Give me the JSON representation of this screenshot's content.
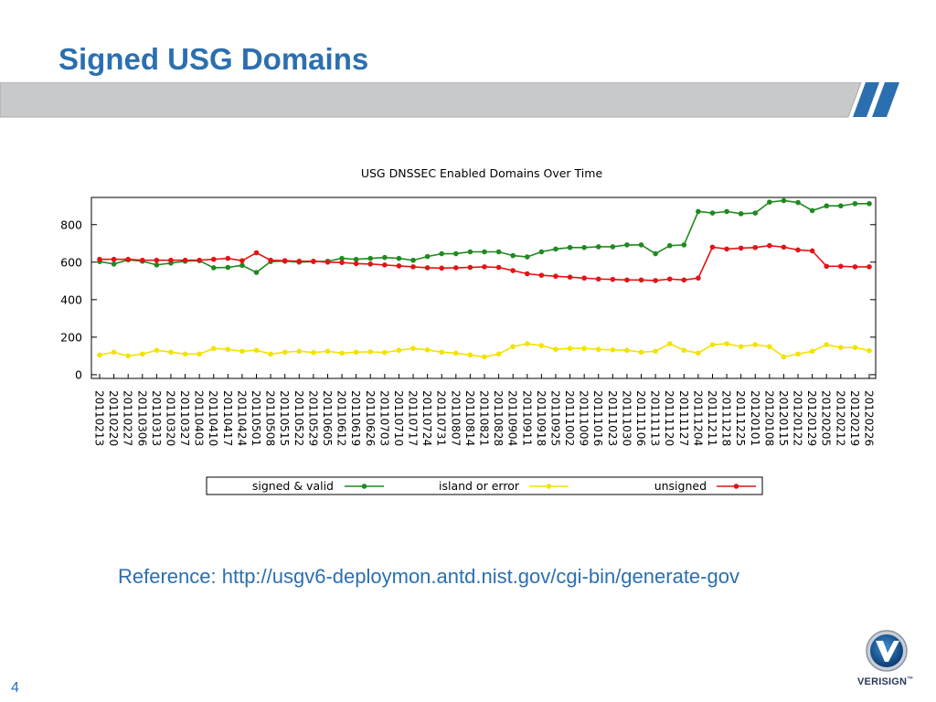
{
  "slide": {
    "title": "Signed USG Domains",
    "reference": "Reference:  http://usgv6-deploymon.antd.nist.gov/cgi-bin/generate-gov",
    "page_number": "4",
    "logo_text": "VERISIGN",
    "logo_tm": "™"
  },
  "colors": {
    "title": "#2c6fb0",
    "banner": "#c8c9cb",
    "signed": "#1f8a1f",
    "island": "#f2e300",
    "unsigned": "#e31414"
  },
  "chart_data": {
    "type": "line",
    "title": "USG DNSSEC Enabled Domains Over Time",
    "xlabel": "",
    "ylabel": "",
    "ylim": [
      -20,
      945
    ],
    "yticks": [
      0,
      200,
      400,
      600,
      800
    ],
    "grid": false,
    "legend_position": "bottom",
    "x": [
      "20110213",
      "20110220",
      "20110227",
      "20110306",
      "20110313",
      "20110320",
      "20110327",
      "20110403",
      "20110410",
      "20110417",
      "20110424",
      "20110501",
      "20110508",
      "20110515",
      "20110522",
      "20110529",
      "20110605",
      "20110612",
      "20110619",
      "20110626",
      "20110703",
      "20110710",
      "20110717",
      "20110724",
      "20110731",
      "20110807",
      "20110814",
      "20110821",
      "20110828",
      "20110904",
      "20110911",
      "20110918",
      "20110925",
      "20111002",
      "20111009",
      "20111016",
      "20111023",
      "20111030",
      "20111106",
      "20111113",
      "20111120",
      "20111127",
      "20111204",
      "20111211",
      "20111218",
      "20111225",
      "20120101",
      "20120108",
      "20120115",
      "20120122",
      "20120129",
      "20120205",
      "20120212",
      "20120219",
      "20120226"
    ],
    "series": [
      {
        "name": "signed & valid",
        "color": "#1f8a1f",
        "values": [
          603,
          590,
          612,
          605,
          585,
          595,
          605,
          608,
          570,
          572,
          583,
          545,
          603,
          605,
          600,
          603,
          605,
          620,
          615,
          620,
          625,
          620,
          610,
          630,
          645,
          645,
          655,
          655,
          655,
          635,
          628,
          655,
          670,
          678,
          678,
          682,
          682,
          692,
          692,
          645,
          688,
          692,
          870,
          862,
          870,
          858,
          862,
          920,
          928,
          918,
          875,
          900,
          900,
          912,
          912
        ]
      },
      {
        "name": "island or error",
        "color": "#f2e300",
        "values": [
          105,
          120,
          100,
          110,
          130,
          120,
          110,
          110,
          140,
          135,
          125,
          130,
          110,
          120,
          125,
          118,
          125,
          115,
          120,
          122,
          118,
          130,
          140,
          132,
          120,
          115,
          105,
          95,
          110,
          150,
          165,
          155,
          135,
          140,
          140,
          135,
          132,
          130,
          120,
          125,
          165,
          130,
          115,
          160,
          165,
          150,
          160,
          150,
          95,
          110,
          125,
          160,
          145,
          145,
          128
        ]
      },
      {
        "name": "unsigned",
        "color": "#e31414",
        "values": [
          615,
          615,
          615,
          610,
          610,
          610,
          610,
          610,
          615,
          620,
          608,
          650,
          610,
          608,
          605,
          605,
          600,
          598,
          592,
          590,
          585,
          580,
          575,
          570,
          568,
          570,
          572,
          575,
          572,
          555,
          538,
          530,
          525,
          520,
          515,
          510,
          508,
          505,
          505,
          502,
          510,
          505,
          515,
          680,
          670,
          675,
          678,
          688,
          680,
          665,
          660,
          578,
          578,
          575,
          575
        ]
      }
    ]
  }
}
